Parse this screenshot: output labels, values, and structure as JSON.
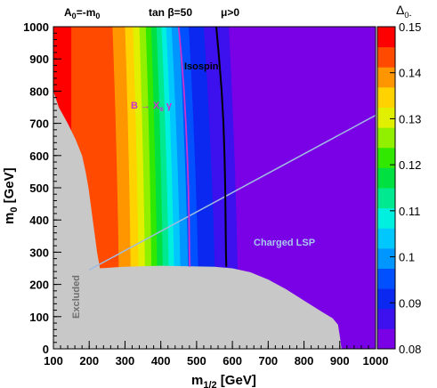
{
  "chart_data": {
    "type": "heatmap",
    "header": {
      "a0": "A",
      "a0_sub": "0",
      "a0_eq": "=-m",
      "a0_sub2": "0",
      "tanbeta": "tan β=50",
      "mu": "μ>0"
    },
    "xlabel": "m",
    "xlabel_sub": "1/2",
    "xlabel_unit": " [GeV]",
    "ylabel": "m",
    "ylabel_sub": "0",
    "ylabel_unit": " [GeV]",
    "xlim": [
      100,
      1000
    ],
    "ylim": [
      0,
      1000
    ],
    "xticks": [
      100,
      200,
      300,
      400,
      500,
      600,
      700,
      800,
      900,
      1000
    ],
    "yticks": [
      0,
      100,
      200,
      300,
      400,
      500,
      600,
      700,
      800,
      900,
      1000
    ],
    "colorbar": {
      "title": "Δ",
      "title_sub": "0-",
      "range": [
        0.08,
        0.15
      ],
      "ticks": [
        "0.08",
        "0.09",
        "0.1",
        "0.11",
        "0.12",
        "0.13",
        "0.14",
        "0.15"
      ],
      "colors": [
        "#7a00e6",
        "#3d10ee",
        "#0a28ef",
        "#0050ff",
        "#0096ff",
        "#00c8ff",
        "#00f0e0",
        "#00e890",
        "#00e040",
        "#30e800",
        "#90f000",
        "#e0f000",
        "#ffd200",
        "#ff9600",
        "#ff4a00",
        "#ff0000"
      ]
    },
    "bands": [
      {
        "x_at_top": 150,
        "x_at_bottom": 150
      },
      {
        "x_at_top": 265,
        "x_at_bottom": 285
      },
      {
        "x_at_top": 300,
        "x_at_bottom": 318
      },
      {
        "x_at_top": 322,
        "x_at_bottom": 340
      },
      {
        "x_at_top": 340,
        "x_at_bottom": 358
      },
      {
        "x_at_top": 358,
        "x_at_bottom": 376
      },
      {
        "x_at_top": 373,
        "x_at_bottom": 392
      },
      {
        "x_at_top": 388,
        "x_at_bottom": 408
      },
      {
        "x_at_top": 402,
        "x_at_bottom": 425
      },
      {
        "x_at_top": 415,
        "x_at_bottom": 440
      },
      {
        "x_at_top": 430,
        "x_at_bottom": 458
      },
      {
        "x_at_top": 450,
        "x_at_bottom": 480
      },
      {
        "x_at_top": 478,
        "x_at_bottom": 508
      },
      {
        "x_at_top": 520,
        "x_at_bottom": 555
      },
      {
        "x_at_top": 590,
        "x_at_bottom": 618
      },
      {
        "x_at_top": 830,
        "x_at_bottom": 850
      }
    ],
    "excluded_region": {
      "label": "Excluded",
      "color": "#c8c8c8",
      "left_boundary": [
        [
          100,
          800
        ],
        [
          115,
          750
        ],
        [
          140,
          700
        ],
        [
          162,
          650
        ],
        [
          180,
          600
        ],
        [
          190,
          550
        ],
        [
          198,
          500
        ],
        [
          204,
          450
        ],
        [
          210,
          400
        ],
        [
          216,
          350
        ],
        [
          222,
          300
        ],
        [
          230,
          250
        ]
      ],
      "bottom_boundary": [
        [
          230,
          250
        ],
        [
          300,
          255
        ],
        [
          400,
          258
        ],
        [
          500,
          256
        ],
        [
          550,
          255
        ],
        [
          600,
          250
        ],
        [
          650,
          238
        ],
        [
          700,
          215
        ],
        [
          750,
          185
        ],
        [
          800,
          150
        ],
        [
          850,
          115
        ],
        [
          880,
          95
        ],
        [
          895,
          75
        ],
        [
          900,
          40
        ],
        [
          905,
          0
        ]
      ]
    },
    "curves": [
      {
        "name": "B → X",
        "name_sub": "s",
        "name_suffix": " γ",
        "color": "#cc33cc",
        "points": [
          [
            450,
            1000
          ],
          [
            458,
            900
          ],
          [
            465,
            800
          ],
          [
            470,
            700
          ],
          [
            474,
            600
          ],
          [
            477,
            500
          ],
          [
            479,
            400
          ],
          [
            480,
            300
          ],
          [
            481,
            255
          ]
        ]
      },
      {
        "name": "Isospin",
        "color": "#000000",
        "points": [
          [
            555,
            1000
          ],
          [
            563,
            900
          ],
          [
            570,
            800
          ],
          [
            575,
            700
          ],
          [
            578,
            600
          ],
          [
            580,
            500
          ],
          [
            581,
            400
          ],
          [
            582,
            300
          ],
          [
            583,
            255
          ]
        ]
      }
    ],
    "lsp_line": {
      "name": "Charged LSP",
      "color": "#a0bce0",
      "points": [
        [
          200,
          245
        ],
        [
          1000,
          725
        ]
      ]
    }
  }
}
